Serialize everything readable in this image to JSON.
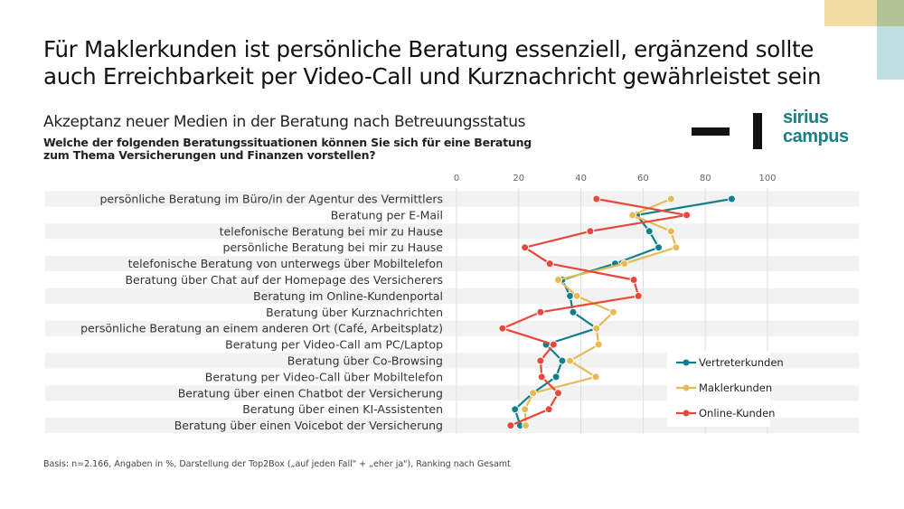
{
  "title": "Für Maklerkunden ist persönliche Beratung essenziell, ergänzend sollte auch Erreichbarkeit per Video-Call und Kurznachricht gewährleistet sein",
  "subtitle": "Akzeptanz neuer Medien in der Beratung nach Betreuungsstatus",
  "question": "Welche der folgenden Beratungssituationen können Sie sich für eine Beratung zum Thema Versicherungen und Finanzen vorstellen?",
  "footnote": "Basis: n=2.166, Angaben in %, Darstellung der Top2Box („auf jeden Fall\" + „eher ja\"), Ranking nach Gesamt",
  "logo": {
    "text1": "sirius",
    "text2": "campus"
  },
  "colors": {
    "teal": "#11808a",
    "yellow": "#e6bb56",
    "red": "#e9473a",
    "band": "#f2f2f2",
    "sq_yellow": "#f0dca3",
    "sq_green": "#b4c298",
    "sq_teal": "#bfe0e2"
  },
  "chart_data": {
    "type": "line",
    "orientation": "horizontal-dot-line",
    "xlim": [
      0,
      100
    ],
    "xticks": [
      0,
      20,
      40,
      60,
      80,
      100
    ],
    "legend_position": "bottom-right",
    "categories": [
      "persönliche Beratung im Büro/in der Agentur des Vermittlers",
      "Beratung per E-Mail",
      "telefonische Beratung bei mir zu Hause",
      "persönliche Beratung bei mir zu Hause",
      "telefonische Beratung von unterwegs über Mobiltelefon",
      "Beratung über Chat auf der Homepage des Versicherers",
      "Beratung im Online-Kundenportal",
      "Beratung über Kurznachrichten",
      "persönliche Beratung an einem anderen Ort (Café, Arbeitsplatz)",
      "Beratung per Video-Call am PC/Laptop",
      "Beratung über Co-Browsing",
      "Beratung per Video-Call über Mobiltelefon",
      "Beratung über einen Chatbot der Versicherung",
      "Beratung über einen KI-Assistenten",
      "Beratung über einen Voicebot der Versicherung"
    ],
    "series": [
      {
        "name": "Vertreterkunden",
        "color": "#11808a",
        "values": [
          88.5,
          58,
          62,
          65,
          51,
          34,
          36.5,
          37.5,
          45,
          28.8,
          34,
          32,
          24.5,
          18.8,
          20.5
        ]
      },
      {
        "name": "Maklerkunden",
        "color": "#e6bb56",
        "values": [
          69,
          56.6,
          69,
          70.6,
          54,
          32.7,
          38.7,
          50.4,
          45,
          45.7,
          36.5,
          44.8,
          24.6,
          22,
          22.3
        ]
      },
      {
        "name": "Online-Kunden",
        "color": "#e9473a",
        "values": [
          45,
          74,
          43,
          22,
          30,
          57,
          58.5,
          27,
          14.8,
          31.2,
          27,
          27.4,
          32.7,
          29.7,
          17.4
        ]
      }
    ]
  }
}
